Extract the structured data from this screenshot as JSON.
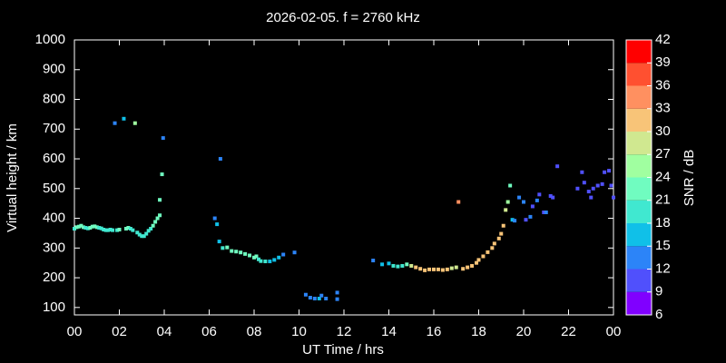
{
  "chart_data": {
    "type": "scatter",
    "title": "2026-02-05. f = 2760 kHz",
    "x_label": "UT Time / hrs",
    "y_label": "Virtual height / km",
    "xlim": [
      0,
      24
    ],
    "ylim": [
      75,
      1000
    ],
    "xticks": [
      {
        "value": 0,
        "label": "00"
      },
      {
        "value": 2,
        "label": "02"
      },
      {
        "value": 4,
        "label": "04"
      },
      {
        "value": 6,
        "label": "06"
      },
      {
        "value": 8,
        "label": "08"
      },
      10,
      12,
      14,
      16,
      18,
      20,
      22,
      {
        "value": 24,
        "label": "00"
      }
    ],
    "yticks": [
      100,
      200,
      300,
      400,
      500,
      600,
      700,
      800,
      900,
      1000
    ],
    "x": [
      0,
      0.1,
      0.2,
      0.3,
      0.4,
      0.5,
      0.6,
      0.7,
      0.8,
      0.9,
      1,
      1.1,
      1.2,
      1.3,
      1.4,
      1.5,
      1.6,
      1.7,
      1.8,
      1.9,
      2,
      2.2,
      2.3,
      2.4,
      2.5,
      2.6,
      2.7,
      2.8,
      2.9,
      3,
      3.1,
      3.2,
      3.3,
      3.4,
      3.5,
      3.6,
      3.7,
      3.8,
      3.8,
      3.9,
      3.95,
      6.25,
      6.35,
      6.45,
      6.5,
      6.6,
      6.8,
      7,
      7.2,
      7.4,
      7.6,
      7.8,
      8,
      8.1,
      8.2,
      8.3,
      8.5,
      8.7,
      8.9,
      9.1,
      9.3,
      9.8,
      10.3,
      10.5,
      10.7,
      10.9,
      11,
      11.2,
      11.7,
      11.7,
      13.3,
      13.7,
      14,
      14.2,
      14.4,
      14.6,
      14.8,
      15,
      15.2,
      15.4,
      15.6,
      15.8,
      16,
      16.2,
      16.4,
      16.6,
      16.8,
      17,
      17.1,
      17.3,
      17.5,
      17.7,
      17.9,
      18,
      18.2,
      18.4,
      18.6,
      18.7,
      18.9,
      19,
      19.1,
      19.2,
      19.3,
      19.4,
      19.5,
      19.6,
      19.8,
      20,
      20.1,
      20.3,
      20.4,
      20.6,
      20.7,
      20.9,
      21,
      21.2,
      21.3,
      21.5,
      22.4,
      22.6,
      22.7,
      22.9,
      23,
      23.1,
      23.3,
      23.5,
      23.6,
      23.8,
      23.9,
      24
    ],
    "values": [
      365,
      370,
      372,
      375,
      370,
      368,
      366,
      368,
      372,
      373,
      370,
      368,
      366,
      362,
      360,
      360,
      362,
      360,
      720,
      360,
      362,
      735,
      365,
      368,
      365,
      360,
      720,
      352,
      345,
      340,
      340,
      348,
      358,
      365,
      375,
      388,
      400,
      410,
      462,
      548,
      670,
      400,
      380,
      322,
      600,
      300,
      302,
      290,
      288,
      285,
      280,
      275,
      268,
      272,
      262,
      256,
      255,
      255,
      260,
      268,
      278,
      285,
      143,
      133,
      130,
      130,
      140,
      130,
      150,
      128,
      258,
      245,
      248,
      240,
      238,
      240,
      245,
      240,
      235,
      230,
      225,
      228,
      228,
      228,
      226,
      228,
      232,
      235,
      455,
      230,
      235,
      240,
      250,
      260,
      272,
      286,
      300,
      315,
      332,
      348,
      375,
      428,
      455,
      510,
      395,
      392,
      470,
      455,
      395,
      405,
      440,
      460,
      480,
      420,
      420,
      475,
      470,
      575,
      500,
      555,
      520,
      490,
      470,
      500,
      510,
      515,
      555,
      560,
      510,
      470
    ],
    "snr": [
      20,
      21,
      21,
      22,
      21,
      20,
      20,
      21,
      22,
      21,
      21,
      20,
      20,
      19,
      19,
      20,
      20,
      19,
      12,
      20,
      21,
      17,
      22,
      21,
      20,
      20,
      25,
      19,
      19,
      19,
      18,
      19,
      20,
      20,
      21,
      22,
      22,
      23,
      21,
      21,
      12,
      13,
      15,
      16,
      13,
      20,
      21,
      22,
      23,
      22,
      21,
      22,
      21,
      22,
      20,
      19,
      18,
      17,
      16,
      15,
      14,
      13,
      13,
      12,
      13,
      15,
      12,
      14,
      12,
      12,
      12,
      15,
      17,
      18,
      19,
      20,
      22,
      29,
      31,
      32,
      32,
      32,
      31,
      32,
      31,
      30,
      29,
      27,
      33,
      30,
      31,
      31,
      31,
      31,
      31,
      32,
      31,
      31,
      31,
      31,
      30,
      27,
      25,
      21,
      17,
      14,
      12,
      12,
      11,
      12,
      11,
      12,
      11,
      10,
      12,
      11,
      10,
      11,
      11,
      11,
      10,
      11,
      10,
      11,
      10,
      11,
      10,
      10,
      10,
      11
    ],
    "colorbar": {
      "label": "SNR / dB",
      "ticks": [
        6,
        9,
        12,
        15,
        18,
        21,
        24,
        27,
        30,
        33,
        36,
        39,
        42
      ],
      "colors": [
        "#8000ff",
        "#5050fc",
        "#2c84f8",
        "#10c0e8",
        "#40e8d0",
        "#70fcc0",
        "#a0ffa0",
        "#d0e890",
        "#f8c478",
        "#ff9060",
        "#ff5030",
        "#ff0000"
      ]
    }
  }
}
